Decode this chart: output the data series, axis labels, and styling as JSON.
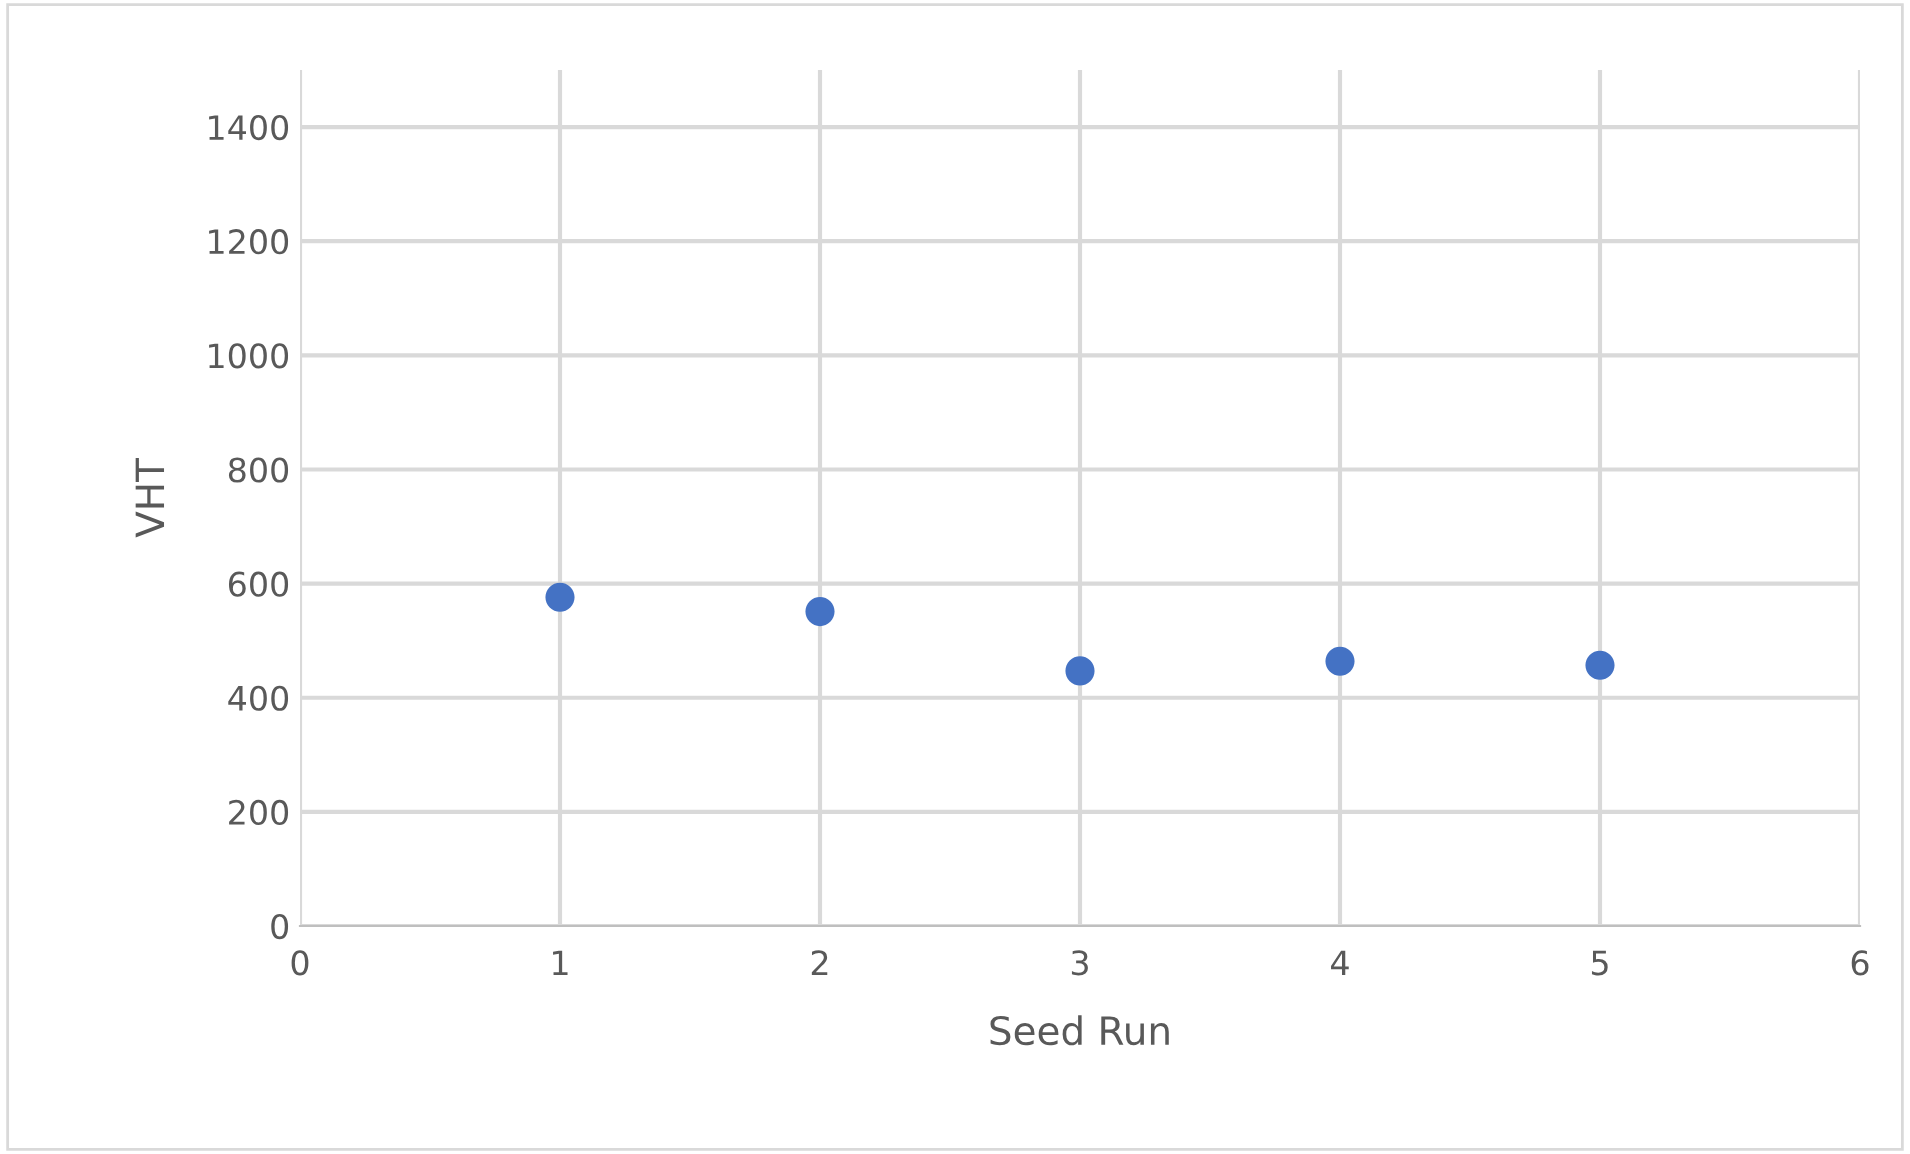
{
  "chart_data": {
    "type": "scatter",
    "xlabel": "Seed Run",
    "ylabel": "VHT",
    "x": [
      1,
      2,
      3,
      4,
      5
    ],
    "series": [
      {
        "color": "#4472c4",
        "values": [
          576,
          551,
          447,
          464,
          457
        ]
      }
    ],
    "xlim": [
      0,
      6
    ],
    "xticks": [
      0,
      1,
      2,
      3,
      4,
      5,
      6
    ],
    "ylim": [
      0,
      1500
    ],
    "yticks": [
      0,
      200,
      400,
      600,
      800,
      1000,
      1200,
      1400
    ],
    "grid": true,
    "marker": "circle",
    "legend": false
  }
}
